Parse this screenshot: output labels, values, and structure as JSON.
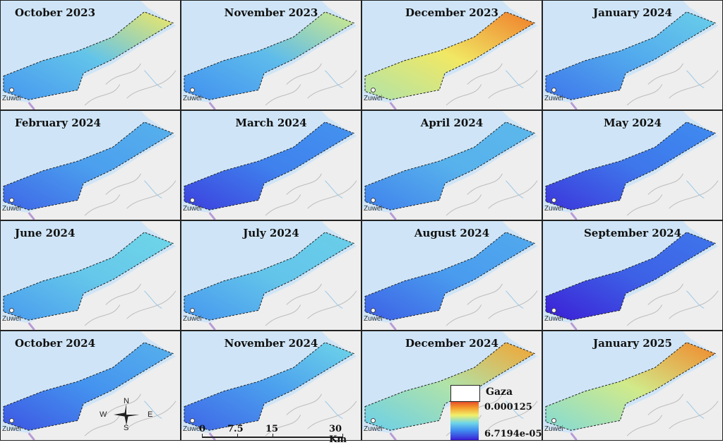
{
  "panels": [
    {
      "title": "October 2023",
      "level": 0.35,
      "ne": 0.62
    },
    {
      "title": "November 2023",
      "level": 0.33,
      "ne": 0.55
    },
    {
      "title": "December 2023",
      "level": 0.62,
      "ne": 0.88
    },
    {
      "title": "January 2024",
      "level": 0.28,
      "ne": 0.38
    },
    {
      "title": "February 2024",
      "level": 0.25,
      "ne": 0.3
    },
    {
      "title": "March 2024",
      "level": 0.18,
      "ne": 0.22
    },
    {
      "title": "April 2024",
      "level": 0.3,
      "ne": 0.32
    },
    {
      "title": "May 2024",
      "level": 0.16,
      "ne": 0.2
    },
    {
      "title": "June 2024",
      "level": 0.36,
      "ne": 0.4
    },
    {
      "title": "July 2024",
      "level": 0.35,
      "ne": 0.38
    },
    {
      "title": "August 2024",
      "level": 0.24,
      "ne": 0.28
    },
    {
      "title": "September 2024",
      "level": 0.12,
      "ne": 0.16
    },
    {
      "title": "October 2024",
      "level": 0.22,
      "ne": 0.3
    },
    {
      "title": "November 2024",
      "level": 0.25,
      "ne": 0.4
    },
    {
      "title": "December 2024",
      "level": 0.5,
      "ne": 0.78
    },
    {
      "title": "January 2025",
      "level": 0.55,
      "ne": 0.85
    }
  ],
  "town_label": "Zuwei",
  "legend": {
    "boundary_label": "Gaza",
    "max_value": "0.000125",
    "min_value": "6.7194e-05"
  },
  "scale_bar": {
    "ticks": [
      "0",
      "7.5",
      "15",
      "30 Km"
    ]
  },
  "compass": {
    "n": "N",
    "s": "S",
    "w": "W",
    "e": "E"
  },
  "colors": {
    "sea": "#cfe5f7",
    "land": "#eeeeee",
    "ramp": [
      "#3b1fd6",
      "#3f8cf0",
      "#6fd6e8",
      "#f1f06a",
      "#f49b2a",
      "#e8502b"
    ]
  }
}
